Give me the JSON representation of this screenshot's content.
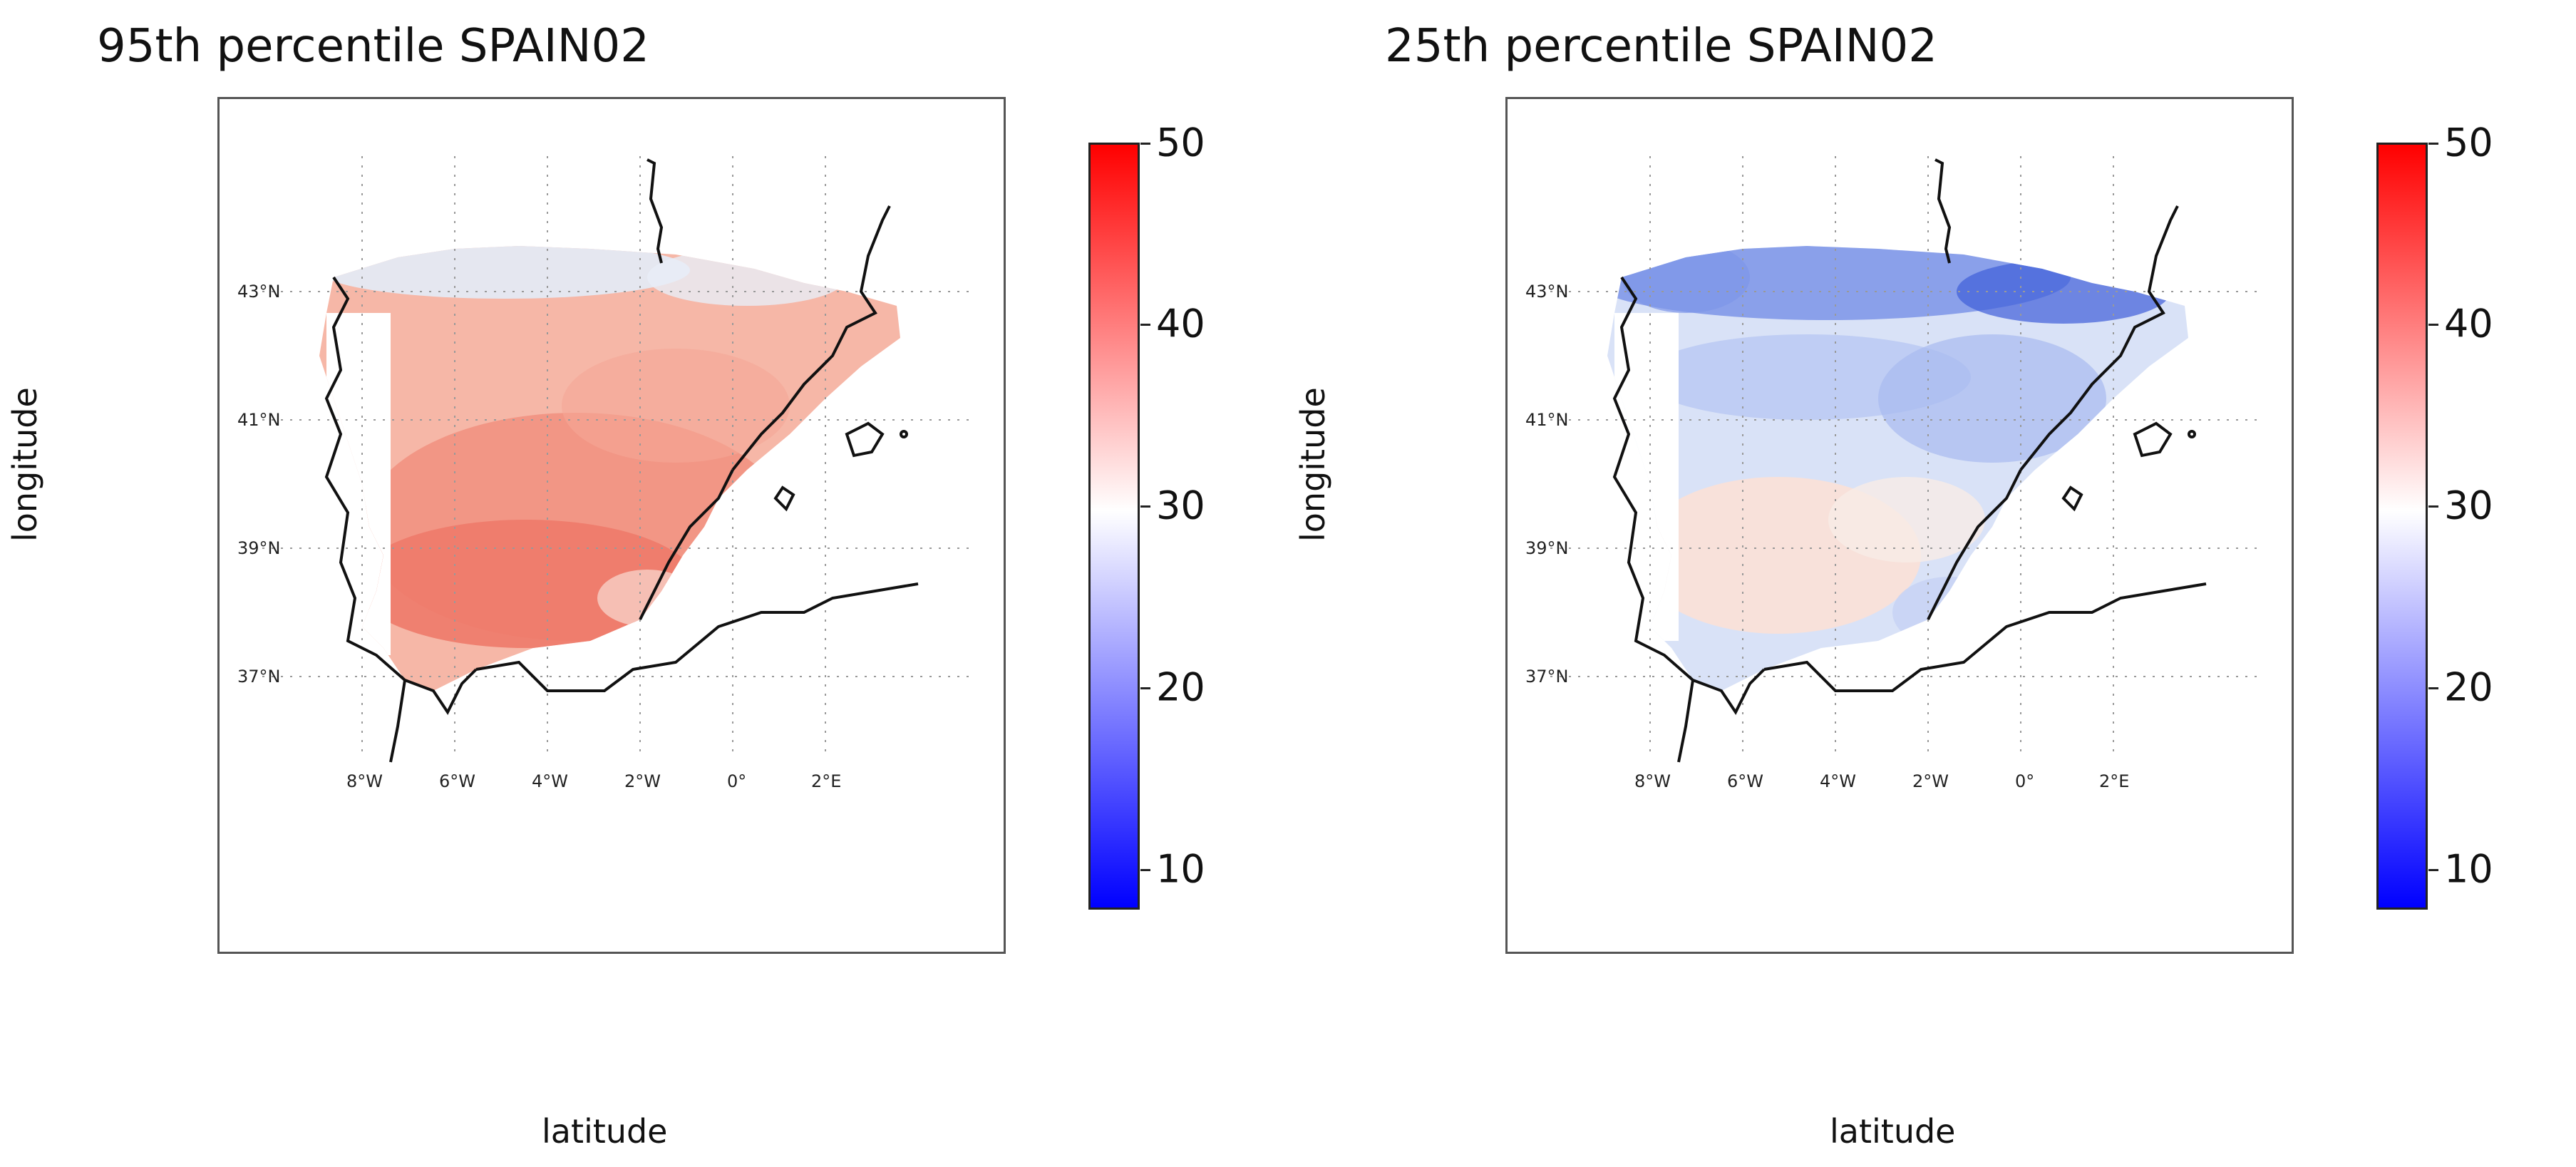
{
  "panels": [
    {
      "title": "95th percentile SPAIN02",
      "xlabel": "latitude",
      "ylabel": "longitude",
      "variant": "high"
    },
    {
      "title": "25th percentile SPAIN02",
      "xlabel": "latitude",
      "ylabel": "longitude",
      "variant": "low"
    }
  ],
  "colorbar": {
    "ticks": [
      "50",
      "40",
      "30",
      "20",
      "10"
    ],
    "min_value": 8,
    "max_value": 50,
    "colors": {
      "low": "#0000ff",
      "mid": "#ffffff",
      "high": "#ff0000"
    }
  },
  "lat_labels": [
    "43°N",
    "41°N",
    "39°N",
    "37°N"
  ],
  "lon_labels": [
    "8°W",
    "6°W",
    "4°W",
    "2°W",
    "0°",
    "2°E"
  ],
  "palettes": {
    "high": {
      "base": "#f6b7a7",
      "warm": "#f1907f",
      "hot": "#ee7a6a",
      "cool": "#e3ecf8",
      "white": "#ffffff"
    },
    "low": {
      "base": "#d9e2f7",
      "mid": "#b8c8f3",
      "deep": "#6f89e6",
      "warm": "#fbe1d6",
      "white": "#ffffff"
    }
  }
}
